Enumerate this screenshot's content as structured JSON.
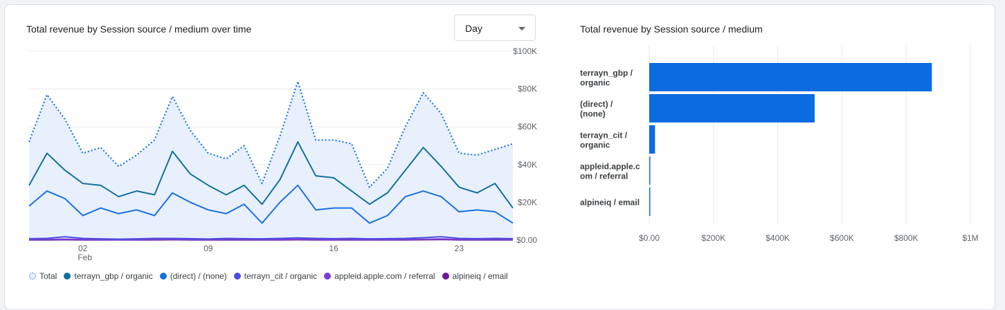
{
  "line_card": {
    "title": "Total revenue by Session source / medium over time",
    "granularity": "Day"
  },
  "bar_card": {
    "title": "Total revenue by Session source / medium"
  },
  "colors": {
    "Total": "#1a73e8",
    "terrayn_gbp / organic": "#12709c",
    "(direct) / (none)": "#1a6fe0",
    "terrayn_cit / organic": "#4a4fdc",
    "appleid.apple.com / referral": "#7b3bd6",
    "alpineiq / email": "#6a1b9a",
    "bar": "#0b6be0",
    "area": "#e8f0fe"
  },
  "chart_data": [
    {
      "type": "line",
      "x_tick_labels": [
        {
          "index": 3,
          "label": "02",
          "sub": "Feb"
        },
        {
          "index": 10,
          "label": "09",
          "sub": ""
        },
        {
          "index": 17,
          "label": "16",
          "sub": ""
        },
        {
          "index": 24,
          "label": "23",
          "sub": ""
        }
      ],
      "y_ticks": [
        "$0.00",
        "$20K",
        "$40K",
        "$60K",
        "$80K",
        "$100K"
      ],
      "ylim": [
        0,
        100000
      ],
      "series": [
        {
          "name": "Total",
          "style": "dotted",
          "values": [
            52000,
            77000,
            64000,
            46000,
            49000,
            39000,
            45000,
            53000,
            76000,
            58000,
            46000,
            43000,
            50000,
            30000,
            55000,
            84000,
            53000,
            53000,
            51000,
            28000,
            38000,
            60000,
            78000,
            67000,
            46000,
            45000,
            48000,
            51000
          ]
        },
        {
          "name": "terrayn_gbp / organic",
          "style": "solid",
          "values": [
            29000,
            46000,
            37000,
            30000,
            29000,
            23000,
            26000,
            24000,
            47000,
            35000,
            29000,
            24000,
            29000,
            19000,
            32000,
            52000,
            34000,
            33000,
            26000,
            19000,
            25000,
            37000,
            49000,
            39000,
            28000,
            25000,
            30000,
            17000
          ]
        },
        {
          "name": "(direct) / (none)",
          "style": "solid",
          "values": [
            18000,
            26000,
            22000,
            13000,
            17000,
            14000,
            16000,
            13000,
            25000,
            20000,
            16000,
            14000,
            19000,
            9000,
            20000,
            29000,
            16000,
            17000,
            17000,
            9000,
            13000,
            23000,
            26000,
            23000,
            15000,
            16000,
            15000,
            9000
          ]
        },
        {
          "name": "terrayn_cit / organic",
          "style": "solid",
          "values": [
            800,
            900,
            1800,
            900,
            700,
            500,
            700,
            900,
            900,
            800,
            600,
            900,
            800,
            700,
            900,
            1200,
            900,
            800,
            900,
            700,
            800,
            900,
            1300,
            1800,
            900,
            800,
            900,
            800
          ]
        },
        {
          "name": "appleid.apple.com / referral",
          "style": "solid",
          "values": [
            300,
            300,
            500,
            300,
            300,
            200,
            300,
            300,
            400,
            300,
            300,
            300,
            300,
            300,
            300,
            400,
            300,
            300,
            300,
            300,
            300,
            300,
            400,
            600,
            300,
            300,
            300,
            300
          ]
        },
        {
          "name": "alpineiq / email",
          "style": "solid",
          "values": [
            100,
            100,
            200,
            100,
            100,
            100,
            100,
            100,
            200,
            100,
            100,
            100,
            100,
            100,
            100,
            200,
            100,
            100,
            100,
            100,
            100,
            100,
            200,
            300,
            100,
            100,
            100,
            100
          ]
        }
      ],
      "legend": [
        "Total",
        "terrayn_gbp / organic",
        "(direct) / (none)",
        "terrayn_cit / organic",
        "appleid.apple.com / referral",
        "alpineiq / email"
      ],
      "legend_position": "bottom"
    },
    {
      "type": "bar",
      "orientation": "horizontal",
      "categories": [
        [
          "terrayn_gbp /",
          "organic"
        ],
        [
          "(direct) /",
          "(none)"
        ],
        [
          "terrayn_cit /",
          "organic"
        ],
        [
          "appleid.apple.c",
          "om / referral"
        ],
        [
          "alpineiq / email"
        ]
      ],
      "values": [
        880000,
        515000,
        18000,
        3000,
        1000
      ],
      "x_ticks": [
        "$0.00",
        "$200K",
        "$400K",
        "$600K",
        "$800K",
        "$1M"
      ],
      "xlim": [
        0,
        1000000
      ]
    }
  ]
}
